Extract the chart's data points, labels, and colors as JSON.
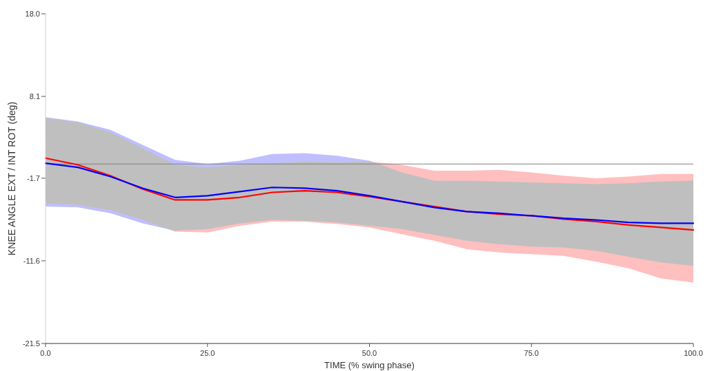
{
  "chart_data": {
    "type": "line",
    "xlabel": "TIME (% swing phase)",
    "ylabel": "KNEE ANGLE EXT / INT ROT (deg)",
    "x": [
      0,
      5,
      10,
      15,
      20,
      25,
      30,
      35,
      40,
      45,
      50,
      55,
      60,
      65,
      70,
      75,
      80,
      85,
      90,
      95,
      100
    ],
    "series": [
      {
        "color": "#ff0000",
        "values": [
          0.7,
          -0.1,
          -1.4,
          -3.0,
          -4.3,
          -4.3,
          -4.0,
          -3.4,
          -3.2,
          -3.4,
          -3.9,
          -4.5,
          -5.1,
          -5.7,
          -6.0,
          -6.2,
          -6.6,
          -6.9,
          -7.3,
          -7.6,
          -7.9
        ],
        "lower": [
          -4.7,
          -4.9,
          -5.5,
          -6.7,
          -8.1,
          -8.2,
          -7.4,
          -6.9,
          -6.9,
          -7.2,
          -7.6,
          -8.4,
          -9.2,
          -10.2,
          -10.6,
          -10.8,
          -11.0,
          -11.7,
          -12.5,
          -13.7,
          -14.2
        ],
        "upper": [
          5.5,
          5.0,
          3.8,
          1.9,
          -0.1,
          -0.4,
          -0.1,
          0.1,
          0.3,
          0.2,
          0.3,
          -0.1,
          -0.8,
          -0.8,
          -0.7,
          -1.0,
          -1.4,
          -1.7,
          -1.5,
          -1.2,
          -1.2
        ]
      },
      {
        "color": "#0000ff",
        "values": [
          0.1,
          -0.4,
          -1.5,
          -2.9,
          -4.0,
          -3.8,
          -3.3,
          -2.8,
          -2.9,
          -3.2,
          -3.8,
          -4.5,
          -5.2,
          -5.7,
          -5.9,
          -6.2,
          -6.5,
          -6.7,
          -7.0,
          -7.1,
          -7.1
        ],
        "lower": [
          -5.1,
          -5.2,
          -5.9,
          -7.1,
          -8.0,
          -7.8,
          -7.1,
          -6.7,
          -6.8,
          -7.0,
          -7.4,
          -7.8,
          -8.5,
          -9.2,
          -9.6,
          -9.9,
          -10.0,
          -10.4,
          -11.1,
          -11.8,
          -12.2
        ],
        "upper": [
          5.6,
          5.1,
          4.1,
          2.3,
          0.5,
          0.0,
          0.4,
          1.2,
          1.3,
          1.0,
          0.4,
          -1.0,
          -2.0,
          -2.0,
          -2.1,
          -2.2,
          -2.3,
          -2.4,
          -2.3,
          -2.1,
          -2.0
        ]
      }
    ],
    "xlim": [
      0,
      100
    ],
    "xticks": [
      {
        "value": 0,
        "label": "0.0"
      },
      {
        "value": 25,
        "label": "25.0"
      },
      {
        "value": 50,
        "label": "50.0"
      },
      {
        "value": 75,
        "label": "75.0"
      },
      {
        "value": 100,
        "label": "100.0"
      }
    ],
    "ylim": [
      -21.5,
      18.0
    ],
    "yticks": [
      {
        "value": -21.5,
        "label": "-21.5"
      },
      {
        "value": -11.6,
        "label": "-11.6"
      },
      {
        "value": -1.7,
        "label": "-1.7"
      },
      {
        "value": 8.1,
        "label": "8.1"
      },
      {
        "value": 18.0,
        "label": "18.0"
      }
    ],
    "ref_lines": [
      {
        "axis": "y",
        "value": 0,
        "color": "#808080"
      }
    ],
    "grid": false,
    "marker": "none",
    "line_style": "solid"
  }
}
